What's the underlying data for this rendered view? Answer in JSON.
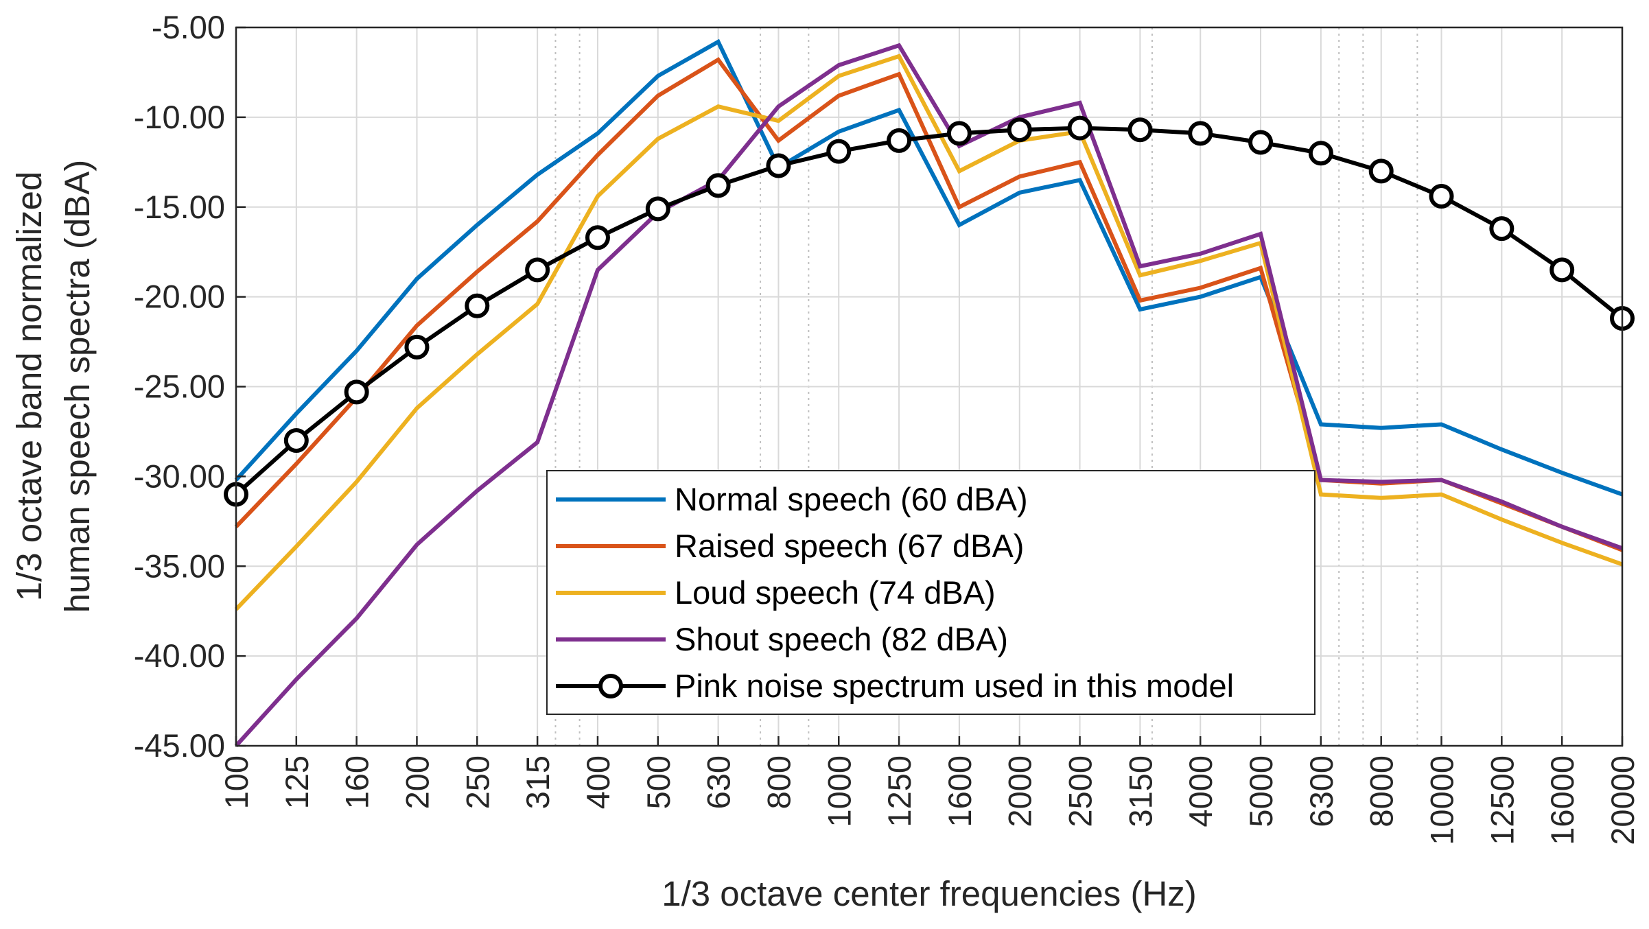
{
  "chart_data": {
    "type": "line",
    "categories": [
      "100",
      "125",
      "160",
      "200",
      "250",
      "315",
      "400",
      "500",
      "630",
      "800",
      "1000",
      "1250",
      "1600",
      "2000",
      "2500",
      "3150",
      "4000",
      "5000",
      "6300",
      "8000",
      "10000",
      "12500",
      "16000",
      "20000"
    ],
    "yticks": [
      "-5.00",
      "-10.00",
      "-15.00",
      "-20.00",
      "-25.00",
      "-30.00",
      "-35.00",
      "-40.00",
      "-45.00"
    ],
    "ylim": [
      -45,
      -5
    ],
    "xlabel": "1/3 octave center frequencies (Hz)",
    "ylabel_lines": [
      "1/3 octave band normalized",
      "human speech spectra (dBA)"
    ],
    "grid": true,
    "legend_position": "bottom-center",
    "series": [
      {
        "name": "Normal speech (60 dBA)",
        "color": "#0072BD",
        "marker": "none",
        "values": [
          -30.2,
          -26.5,
          -23.0,
          -19.0,
          -16.0,
          -13.2,
          -10.9,
          -7.7,
          -5.8,
          -12.8,
          -10.8,
          -9.6,
          -16.0,
          -14.2,
          -13.5,
          -20.7,
          -20.0,
          -18.9,
          -27.1,
          -27.3,
          -27.1,
          -28.5,
          -29.8,
          -31.0
        ]
      },
      {
        "name": "Raised speech (67 dBA)",
        "color": "#D95319",
        "marker": "none",
        "values": [
          -32.8,
          -29.3,
          -25.6,
          -21.6,
          -18.6,
          -15.8,
          -12.1,
          -8.8,
          -6.8,
          -11.3,
          -8.8,
          -7.6,
          -15.0,
          -13.3,
          -12.5,
          -20.2,
          -19.5,
          -18.4,
          -30.2,
          -30.4,
          -30.2,
          -31.5,
          -32.8,
          -34.1
        ]
      },
      {
        "name": "Loud speech (74 dBA)",
        "color": "#EDB120",
        "marker": "none",
        "values": [
          -37.4,
          -33.9,
          -30.3,
          -26.2,
          -23.2,
          -20.4,
          -14.4,
          -11.2,
          -9.4,
          -10.2,
          -7.7,
          -6.6,
          -13.0,
          -11.3,
          -10.8,
          -18.8,
          -18.0,
          -17.0,
          -31.0,
          -31.2,
          -31.0,
          -32.4,
          -33.7,
          -34.9
        ]
      },
      {
        "name": "Shout speech (82 dBA)",
        "color": "#7E2F8E",
        "marker": "none",
        "values": [
          -45.0,
          -41.3,
          -37.9,
          -33.8,
          -30.8,
          -28.1,
          -18.5,
          -15.3,
          -13.5,
          -9.4,
          -7.1,
          -6.0,
          -11.6,
          -10.0,
          -9.2,
          -18.3,
          -17.6,
          -16.5,
          -30.2,
          -30.3,
          -30.2,
          -31.4,
          -32.8,
          -34.0
        ]
      },
      {
        "name": "Pink noise spectrum used in this model",
        "color": "#000000",
        "marker": "circle",
        "values": [
          -31.0,
          -28.0,
          -25.3,
          -22.8,
          -20.5,
          -18.5,
          -16.7,
          -15.1,
          -13.8,
          -12.7,
          -11.9,
          -11.3,
          -10.9,
          -10.7,
          -10.6,
          -10.7,
          -10.9,
          -11.4,
          -12.0,
          -13.0,
          -14.4,
          -16.2,
          -18.5,
          -21.2
        ]
      }
    ]
  }
}
